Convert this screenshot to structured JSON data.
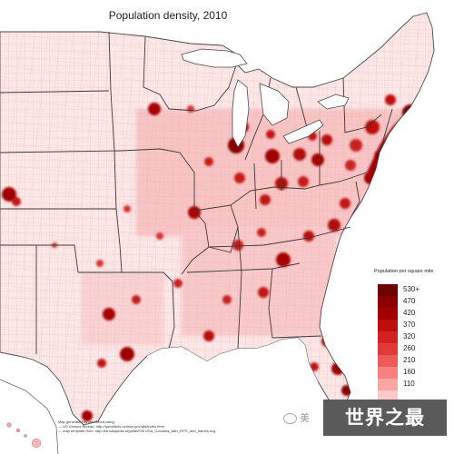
{
  "map": {
    "title": "Population density, 2010",
    "region": "Eastern and central United States, by county",
    "colors": {
      "land_base": "#fbe3e3",
      "county_lines": "#c8a4a4",
      "state_lines": "#444444",
      "coast_line": "#555555",
      "hotspot": "#b0000c"
    }
  },
  "legend": {
    "title": "Population per square mile",
    "bins": [
      {
        "label": "530+",
        "color": "#6e0000"
      },
      {
        "label": "470",
        "color": "#8a0000"
      },
      {
        "label": "420",
        "color": "#a30000"
      },
      {
        "label": "370",
        "color": "#bd0d0d"
      },
      {
        "label": "320",
        "color": "#d42020"
      },
      {
        "label": "260",
        "color": "#e23a3a"
      },
      {
        "label": "210",
        "color": "#ee5a5a"
      },
      {
        "label": "160",
        "color": "#f78080"
      },
      {
        "label": "110",
        "color": "#fba5a5"
      },
      {
        "label": "",
        "color": "#fdc8c8"
      }
    ]
  },
  "credits": {
    "line1": "Map generated by Ian Offord using",
    "line2": "— US Census Bureau: http://quickfacts.census.gov/qfd/index.html",
    "line3": "— map template from: http://en.wikipedia.org/wiki/File:USA_Counties_with_FIPS_and_names.svg"
  },
  "watermark": {
    "text": "世界之最",
    "wechat_text": "美"
  }
}
